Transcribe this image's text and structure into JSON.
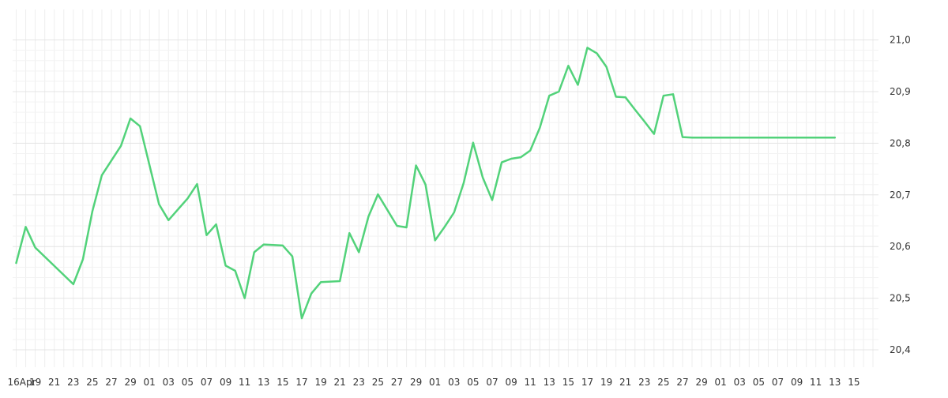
{
  "chart_data": {
    "type": "line",
    "title": "",
    "xlabel": "",
    "ylabel": "",
    "grid": true,
    "line_color": "#52d27a",
    "x_tick_labels": [
      "16Apr",
      "19",
      "21",
      "23",
      "25",
      "27",
      "29",
      "01",
      "03",
      "05",
      "07",
      "09",
      "11",
      "13",
      "15",
      "17",
      "19",
      "21",
      "23",
      "25",
      "27",
      "29",
      "01",
      "03",
      "05",
      "07",
      "09",
      "11",
      "13",
      "15",
      "17",
      "19",
      "21",
      "23",
      "25",
      "27",
      "29",
      "01",
      "03",
      "05",
      "07",
      "09",
      "11",
      "13",
      "15"
    ],
    "y_tick_labels": [
      "20,4",
      "20,5",
      "20,6",
      "20,7",
      "20,8",
      "20,9",
      "21,0"
    ],
    "ylim": [
      20.385,
      21.06
    ],
    "x_range_days": [
      0,
      91
    ],
    "y_axis_position": "right",
    "series": [
      {
        "x": [
          0,
          1,
          2,
          6,
          7,
          8,
          9,
          11,
          12,
          13,
          15,
          16,
          18,
          19,
          20,
          21,
          22,
          23,
          24,
          25,
          26,
          28,
          29,
          30,
          31,
          32,
          34,
          35,
          36,
          37,
          38,
          40,
          41,
          42,
          43,
          44,
          45,
          46,
          47,
          48,
          49,
          50,
          51,
          52,
          53,
          54,
          55,
          56,
          57,
          58,
          59,
          60,
          61,
          62,
          63,
          64,
          65,
          66,
          67,
          68,
          69,
          70,
          71,
          72,
          73,
          74,
          75,
          76,
          77,
          78,
          79,
          80,
          81,
          82,
          83,
          84,
          85,
          86,
          87
        ],
        "y": [
          20.568,
          20.638,
          20.598,
          20.527,
          20.575,
          20.668,
          20.738,
          20.795,
          20.848,
          20.833,
          20.682,
          20.651,
          20.693,
          20.721,
          20.622,
          20.643,
          20.563,
          20.553,
          20.5,
          20.589,
          20.604,
          20.602,
          20.581,
          20.461,
          20.509,
          20.531,
          20.533,
          20.626,
          20.589,
          20.658,
          20.701,
          20.64,
          20.637,
          20.757,
          20.72,
          20.612,
          20.638,
          20.666,
          20.723,
          20.801,
          20.734,
          20.69,
          20.763,
          20.77,
          20.773,
          20.786,
          20.83,
          20.892,
          20.9,
          20.95,
          20.913,
          20.985,
          20.974,
          20.948,
          20.89,
          20.889,
          20.865,
          20.842,
          20.818,
          20.892,
          20.895,
          20.812,
          20.811,
          20.811,
          20.811,
          20.811,
          20.811,
          20.811,
          20.811,
          20.811,
          20.811,
          20.811,
          20.811,
          20.811,
          20.811,
          20.811,
          20.811,
          20.811,
          20.811
        ]
      }
    ]
  }
}
